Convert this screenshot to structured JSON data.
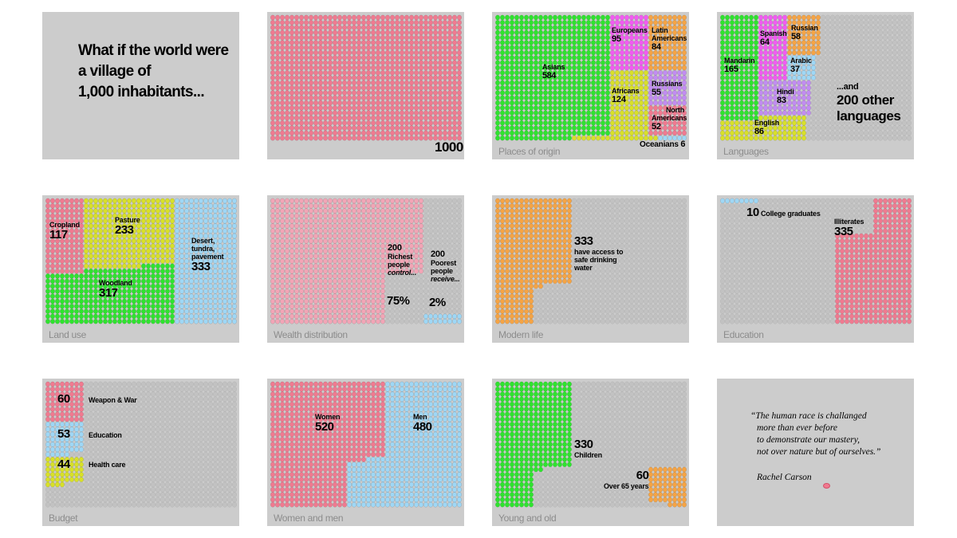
{
  "colors": {
    "pink": "#f07a90",
    "green": "#2fe32f",
    "magenta": "#f25bf2",
    "orange": "#f5a445",
    "yellow": "#d8e02a",
    "purple": "#c28cf2",
    "blue": "#9fd7f5",
    "lightpink": "#f2a5b6",
    "empty": "#c2c2c2"
  },
  "intro": {
    "line1": "What if the world were",
    "line2": "a village of",
    "line3": "1,000 inhabitants..."
  },
  "quote": {
    "line1": "“The human race is challanged",
    "line2": "more than ever before",
    "line3": "to demonstrate our mastery,",
    "line4": "not over nature but of ourselves.”",
    "author": "Rachel Carson"
  },
  "chart_data": [
    {
      "type": "pictogram",
      "title": "",
      "total": 1000,
      "label": "1000",
      "series": [
        {
          "name": "",
          "value": 1000
        }
      ]
    },
    {
      "type": "pictogram",
      "title": "Places of origin",
      "series": [
        {
          "name": "Asians",
          "value": 584
        },
        {
          "name": "Europeans",
          "value": 95
        },
        {
          "name": "Latin Americans",
          "value": 84
        },
        {
          "name": "Africans",
          "value": 124
        },
        {
          "name": "Russians",
          "value": 55
        },
        {
          "name": "North Americans",
          "value": 52
        },
        {
          "name": "Oceanians",
          "value": 6
        }
      ]
    },
    {
      "type": "pictogram",
      "title": "Languages",
      "series": [
        {
          "name": "Mandarin",
          "value": 165
        },
        {
          "name": "Spanish",
          "value": 64
        },
        {
          "name": "Russian",
          "value": 58
        },
        {
          "name": "Arabic",
          "value": 37
        },
        {
          "name": "Hindi",
          "value": 83
        },
        {
          "name": "English",
          "value": 86
        },
        {
          "name": "...and 200 other languages",
          "value": 507
        }
      ]
    },
    {
      "type": "pictogram",
      "title": "Land use",
      "series": [
        {
          "name": "Cropland",
          "value": 117
        },
        {
          "name": "Pasture",
          "value": 233
        },
        {
          "name": "Desert, tundra, pavement",
          "value": 333
        },
        {
          "name": "Woodland",
          "value": 317
        }
      ]
    },
    {
      "type": "pictogram",
      "title": "Wealth distribution",
      "series": [
        {
          "name": "Richest people control...",
          "count": 200,
          "share": "75%"
        },
        {
          "name": "Poorest people receive...",
          "count": 200,
          "share": "2%"
        }
      ]
    },
    {
      "type": "pictogram",
      "title": "Modern life",
      "series": [
        {
          "name": "have access to safe drinking water",
          "value": 333
        }
      ]
    },
    {
      "type": "pictogram",
      "title": "Education",
      "series": [
        {
          "name": "College graduates",
          "value": 10
        },
        {
          "name": "Illiterates",
          "value": 335
        }
      ]
    },
    {
      "type": "pictogram",
      "title": "Budget",
      "series": [
        {
          "name": "Weapon & War",
          "value": 60
        },
        {
          "name": "Education",
          "value": 53
        },
        {
          "name": "Health care",
          "value": 44
        }
      ]
    },
    {
      "type": "pictogram",
      "title": "Women and men",
      "series": [
        {
          "name": "Women",
          "value": 520
        },
        {
          "name": "Men",
          "value": 480
        }
      ]
    },
    {
      "type": "pictogram",
      "title": "Young and old",
      "series": [
        {
          "name": "Children",
          "value": 330
        },
        {
          "name": "Over 65 years",
          "value": 60
        }
      ]
    }
  ],
  "labels": {
    "origin": {
      "asians": "Asians",
      "asians_n": "584",
      "europeans": "Europeans",
      "europeans_n": "95",
      "latin1": "Latin",
      "latin2": "Americans",
      "latin_n": "84",
      "africans": "Africans",
      "africans_n": "124",
      "russians": "Russians",
      "russians_n": "55",
      "north1": "North",
      "north2": "Americans",
      "north_n": "52",
      "oceanians": "Oceanians",
      "oceanians_n": "6"
    },
    "lang": {
      "mandarin": "Mandarin",
      "mandarin_n": "165",
      "spanish": "Spanish",
      "spanish_n": "64",
      "russian": "Russian",
      "russian_n": "58",
      "arabic": "Arabic",
      "arabic_n": "37",
      "hindi": "Hindi",
      "hindi_n": "83",
      "english": "English",
      "english_n": "86",
      "other1": "...and",
      "other2": "200 other",
      "other3": "languages"
    },
    "land": {
      "cropland": "Cropland",
      "cropland_n": "117",
      "pasture": "Pasture",
      "pasture_n": "233",
      "desert1": "Desert,",
      "desert2": "tundra,",
      "desert3": "pavement",
      "desert_n": "333",
      "woodland": "Woodland",
      "woodland_n": "317"
    },
    "wealth": {
      "rich_n": "200",
      "rich1": "Richest",
      "rich2": "people",
      "rich3": "control...",
      "rich_pct": "75%",
      "poor_n": "200",
      "poor1": "Poorest",
      "poor2": "people",
      "poor3": "receive...",
      "poor_pct": "2%"
    },
    "modern": {
      "n": "333",
      "l1": "have access to",
      "l2": "safe drinking",
      "l3": "water"
    },
    "edu": {
      "grad_n": "10",
      "grad": "College graduates",
      "illit": "Illiterates",
      "illit_n": "335"
    },
    "budget": {
      "war_n": "60",
      "war": "Weapon & War",
      "edu_n": "53",
      "edu": "Education",
      "health_n": "44",
      "health": "Health care"
    },
    "sex": {
      "women": "Women",
      "women_n": "520",
      "men": "Men",
      "men_n": "480"
    },
    "age": {
      "children_n": "330",
      "children": "Children",
      "old_n": "60",
      "old": "Over 65 years"
    }
  }
}
